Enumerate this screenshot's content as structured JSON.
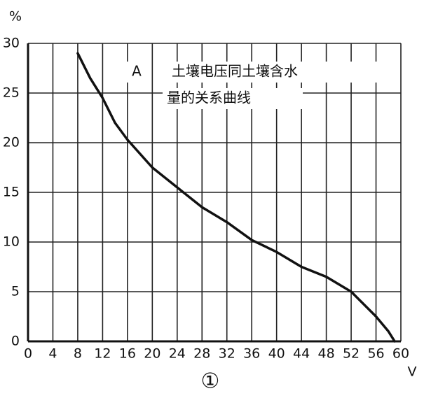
{
  "chart_data": {
    "type": "line",
    "annotation_letter": "A",
    "title_lines": [
      "土壤电压同土壤含水",
      "量的关系曲线"
    ],
    "figure_label": "①",
    "y_label": "%",
    "x_label": "V",
    "xlim": [
      0,
      60
    ],
    "xticks": [
      0,
      4,
      8,
      12,
      16,
      20,
      24,
      28,
      32,
      36,
      40,
      44,
      48,
      52,
      56,
      60
    ],
    "ylim": [
      0,
      30
    ],
    "yticks": [
      0,
      5,
      10,
      15,
      20,
      25,
      30
    ],
    "grid": true,
    "series": [
      {
        "color": "#111111",
        "x": [
          8,
          10,
          12,
          14,
          16,
          20,
          24,
          28,
          32,
          36,
          40,
          44,
          48,
          52,
          56,
          58,
          59
        ],
        "values": [
          29,
          26.5,
          24.5,
          22,
          20.3,
          17.5,
          15.5,
          13.5,
          12,
          10.2,
          9,
          7.5,
          6.5,
          5,
          2.5,
          1,
          0
        ]
      }
    ]
  }
}
